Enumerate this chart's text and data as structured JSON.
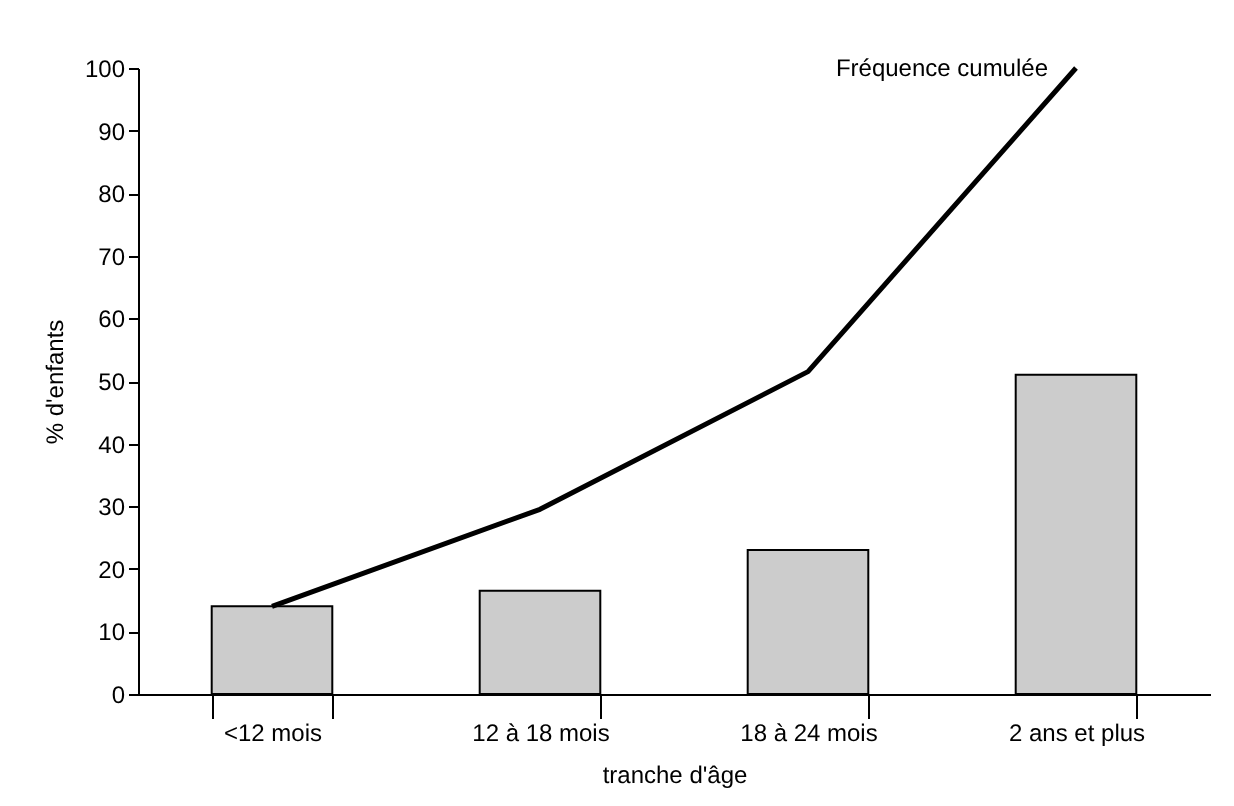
{
  "chart_data": {
    "type": "bar",
    "xlabel": "tranche d'âge",
    "ylabel": "% d'enfants",
    "categories": [
      "<12 mois",
      "12 à 18 mois",
      "18 à 24 mois",
      "2 ans et plus"
    ],
    "series": [
      {
        "color": "#cccccc",
        "values": [
          14,
          16.5,
          23,
          51
        ]
      },
      {
        "type": "line",
        "name": "Fréquence cumulée",
        "color": "#000000",
        "values": [
          14,
          29.5,
          51.5,
          100
        ]
      }
    ],
    "ylim": [
      0,
      100
    ],
    "yticks": [
      0,
      10,
      20,
      30,
      40,
      50,
      60,
      70,
      80,
      90,
      100
    ],
    "line_style": "solid"
  }
}
